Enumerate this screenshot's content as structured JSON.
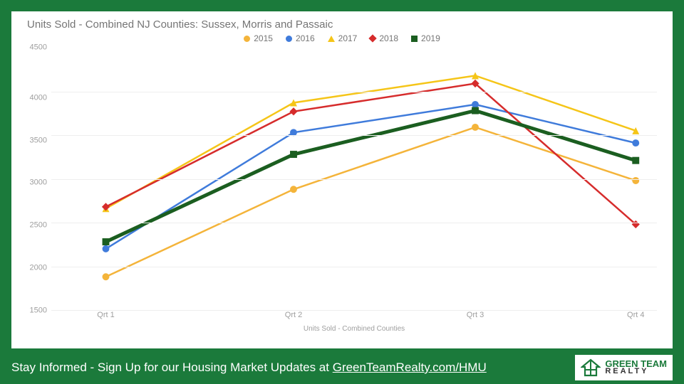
{
  "frame": {
    "bg": "#1b7a3b"
  },
  "chart": {
    "type": "line",
    "title": "Units Sold - Combined NJ Counties: Sussex, Morris and Passaic",
    "title_color": "#757575",
    "title_fontsize": 15,
    "x_labels": [
      "Qrt 1",
      "Qrt 2",
      "Qrt 3",
      "Qrt 4"
    ],
    "x_caption": "Units Sold - Combined Counties",
    "ylim": [
      1500,
      4500
    ],
    "ytick_step": 500,
    "y_ticks": [
      4500,
      4000,
      3500,
      3000,
      2500,
      2000,
      1500
    ],
    "grid_color": "#eeeeee",
    "axis_text_color": "#9e9e9e",
    "background_color": "#ffffff",
    "series": [
      {
        "name": "2015",
        "color": "#f4b43a",
        "marker": "circle",
        "width": 2.5,
        "values": [
          1880,
          2880,
          3590,
          2980
        ]
      },
      {
        "name": "2016",
        "color": "#3f7bdb",
        "marker": "circle",
        "width": 2.5,
        "values": [
          2200,
          3530,
          3850,
          3410
        ]
      },
      {
        "name": "2017",
        "color": "#f5c518",
        "marker": "triangle",
        "width": 2.5,
        "values": [
          2660,
          3870,
          4180,
          3550
        ]
      },
      {
        "name": "2018",
        "color": "#d62c2c",
        "marker": "diamond",
        "width": 2.5,
        "values": [
          2680,
          3770,
          4090,
          2480
        ]
      },
      {
        "name": "2019",
        "color": "#1b5e20",
        "marker": "square",
        "width": 5,
        "values": [
          2280,
          3280,
          3780,
          3210
        ]
      }
    ]
  },
  "footer": {
    "text_prefix": "Stay Informed - Sign Up for our Housing Market Updates at ",
    "link_text": "GreenTeamRealty.com/HMU",
    "logo": {
      "line1": "GREEN TEAM",
      "line2": "REALTY",
      "green": "#1b7a3b",
      "dark": "#333333"
    }
  }
}
